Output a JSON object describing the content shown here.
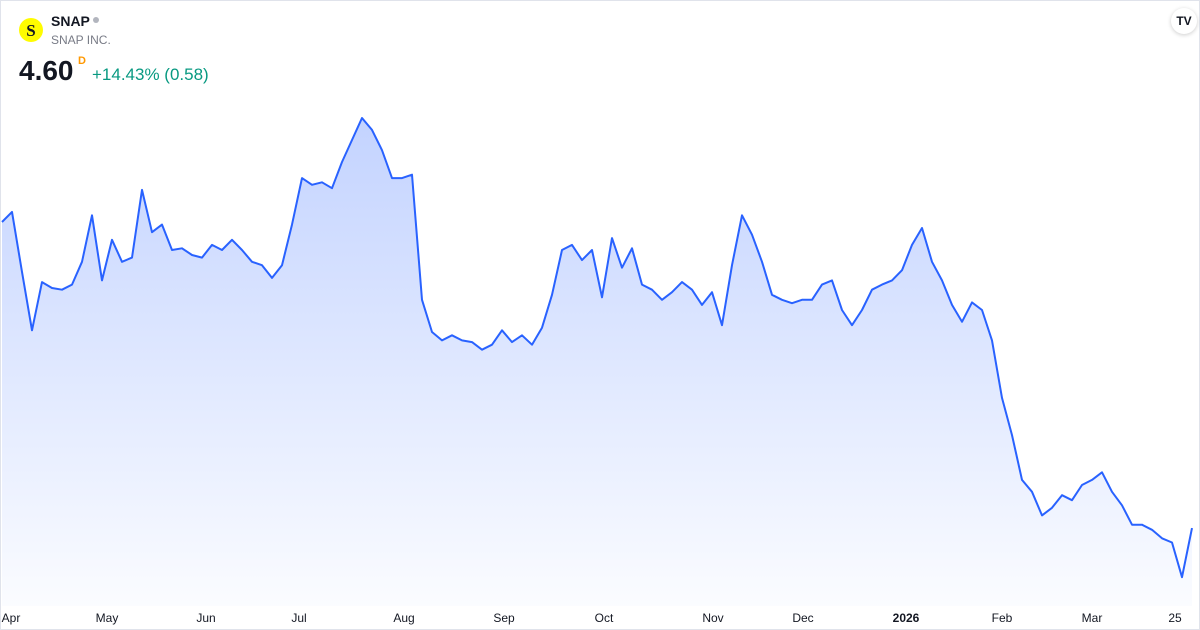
{
  "header": {
    "symbol": "SNAP",
    "company": "SNAP INC.",
    "price": "4.60",
    "price_flag": "D",
    "change": "+14.43% (0.58)"
  },
  "chart_data": {
    "type": "area",
    "color": "#2962ff",
    "values": [
      8.22,
      8.34,
      7.63,
      6.94,
      7.51,
      7.44,
      7.42,
      7.48,
      7.75,
      8.3,
      7.53,
      8.01,
      7.75,
      7.8,
      8.6,
      8.1,
      8.19,
      7.89,
      7.91,
      7.83,
      7.8,
      7.95,
      7.89,
      8.01,
      7.89,
      7.75,
      7.71,
      7.56,
      7.71,
      8.19,
      8.74,
      8.66,
      8.69,
      8.62,
      8.93,
      9.19,
      9.45,
      9.31,
      9.07,
      8.74,
      8.74,
      8.78,
      7.3,
      6.92,
      6.82,
      6.88,
      6.82,
      6.8,
      6.71,
      6.77,
      6.94,
      6.8,
      6.88,
      6.77,
      6.97,
      7.36,
      7.89,
      7.95,
      7.77,
      7.89,
      7.33,
      8.03,
      7.68,
      7.91,
      7.48,
      7.42,
      7.3,
      7.39,
      7.51,
      7.42,
      7.24,
      7.39,
      7.0,
      7.71,
      8.3,
      8.07,
      7.75,
      7.36,
      7.3,
      7.26,
      7.3,
      7.3,
      7.48,
      7.53,
      7.18,
      7.0,
      7.18,
      7.42,
      7.48,
      7.53,
      7.65,
      7.95,
      8.15,
      7.75,
      7.53,
      7.24,
      7.04,
      7.27,
      7.18,
      6.82,
      6.14,
      5.7,
      5.17,
      5.03,
      4.75,
      4.84,
      4.99,
      4.93,
      5.11,
      5.17,
      5.26,
      5.03,
      4.87,
      4.64,
      4.64,
      4.58,
      4.48,
      4.43,
      4.02,
      4.6
    ],
    "ylim": [
      3.75,
      9.9
    ],
    "xticks": [
      {
        "value": 0.9,
        "label": "Apr"
      },
      {
        "value": 10.5,
        "label": "May"
      },
      {
        "value": 20.4,
        "label": "Jun"
      },
      {
        "value": 29.7,
        "label": "Jul"
      },
      {
        "value": 40.2,
        "label": "Aug"
      },
      {
        "value": 50.2,
        "label": "Sep"
      },
      {
        "value": 60.2,
        "label": "Oct"
      },
      {
        "value": 71.1,
        "label": "Nov"
      },
      {
        "value": 80.1,
        "label": "Dec"
      },
      {
        "value": 90.4,
        "label": "2026"
      },
      {
        "value": 100,
        "label": "Feb"
      },
      {
        "value": 109,
        "label": "Mar"
      },
      {
        "value": 117.3,
        "label": "25"
      }
    ]
  }
}
